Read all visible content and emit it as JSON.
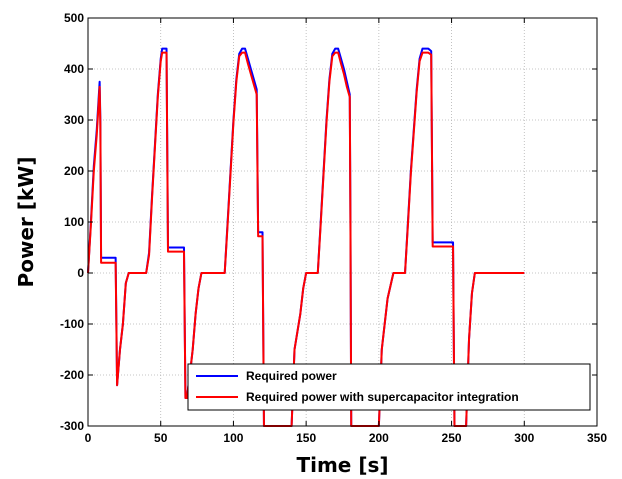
{
  "chart_data": {
    "type": "line",
    "title": "",
    "xlabel": "Time [s]",
    "ylabel": "Power [kW]",
    "xlim": [
      0,
      350
    ],
    "ylim": [
      -300,
      500
    ],
    "xticks": [
      0,
      50,
      100,
      150,
      200,
      250,
      300,
      350
    ],
    "yticks": [
      -300,
      -200,
      -100,
      0,
      100,
      200,
      300,
      400,
      500
    ],
    "grid": true,
    "legend_position": "bottom-right",
    "series": [
      {
        "name": "Required power",
        "color": "#0000ff",
        "x": [
          0,
          2,
          4,
          6,
          8,
          8.5,
          9,
          17,
          19,
          20,
          22,
          24,
          26,
          28,
          30,
          40,
          42,
          44,
          46,
          48,
          50,
          51,
          54,
          55,
          64,
          66,
          67,
          68,
          70,
          72,
          74,
          76,
          78,
          80,
          94,
          96,
          98,
          100,
          102,
          104,
          106,
          108,
          110,
          112,
          114,
          116,
          117,
          120,
          121,
          124,
          140,
          142,
          146,
          148,
          150,
          152,
          155,
          158,
          160,
          162,
          164,
          166,
          168,
          170,
          172,
          174,
          176,
          178,
          180,
          180.5,
          181,
          183,
          200,
          202,
          206,
          210,
          214,
          216,
          218,
          220,
          222,
          224,
          226,
          228,
          230,
          232,
          234,
          236,
          237,
          238,
          240,
          251,
          252,
          254,
          260,
          262,
          264,
          266,
          268,
          270,
          300
        ],
        "y": [
          0,
          100,
          210,
          280,
          375,
          300,
          30,
          30,
          30,
          -220,
          -150,
          -100,
          -20,
          0,
          0,
          0,
          40,
          150,
          250,
          350,
          420,
          440,
          440,
          50,
          50,
          50,
          -245,
          -245,
          -200,
          -150,
          -80,
          -30,
          0,
          0,
          0,
          100,
          200,
          300,
          380,
          430,
          440,
          440,
          420,
          400,
          380,
          360,
          80,
          80,
          -300,
          -300,
          -300,
          -150,
          -80,
          -30,
          0,
          0,
          0,
          0,
          100,
          200,
          300,
          380,
          430,
          440,
          440,
          420,
          400,
          375,
          350,
          80,
          -300,
          -300,
          -300,
          -150,
          -50,
          0,
          0,
          0,
          0,
          100,
          200,
          280,
          360,
          420,
          440,
          440,
          440,
          435,
          60,
          60,
          60,
          60,
          -300,
          -300,
          -300,
          -130,
          -40,
          0,
          0,
          0,
          0
        ]
      },
      {
        "name": "Required power with supercapacitor integration",
        "color": "#ff0000",
        "x": [
          0,
          2,
          4,
          6,
          8,
          8.5,
          9,
          17,
          19,
          20,
          22,
          24,
          26,
          28,
          30,
          40,
          42,
          44,
          46,
          48,
          50,
          51,
          54,
          55,
          64,
          66,
          67,
          68,
          70,
          72,
          74,
          76,
          78,
          80,
          94,
          96,
          98,
          100,
          102,
          104,
          106,
          108,
          110,
          112,
          114,
          116,
          117,
          120,
          121,
          124,
          140,
          142,
          146,
          148,
          150,
          152,
          155,
          158,
          160,
          162,
          164,
          166,
          168,
          170,
          172,
          174,
          176,
          178,
          180,
          180.5,
          181,
          183,
          200,
          202,
          206,
          210,
          214,
          216,
          218,
          220,
          222,
          224,
          226,
          228,
          230,
          232,
          234,
          236,
          237,
          238,
          240,
          251,
          252,
          254,
          260,
          262,
          264,
          266,
          268,
          270,
          300
        ],
        "y": [
          0,
          95,
          200,
          270,
          365,
          290,
          20,
          20,
          20,
          -220,
          -150,
          -100,
          -20,
          0,
          0,
          0,
          35,
          145,
          245,
          345,
          415,
          432,
          432,
          42,
          42,
          42,
          -245,
          -245,
          -200,
          -150,
          -80,
          -30,
          0,
          0,
          0,
          95,
          195,
          295,
          375,
          425,
          432,
          432,
          410,
          390,
          370,
          350,
          72,
          72,
          -300,
          -300,
          -300,
          -150,
          -80,
          -30,
          0,
          0,
          0,
          0,
          95,
          195,
          295,
          375,
          425,
          432,
          432,
          410,
          390,
          365,
          345,
          72,
          -300,
          -300,
          -300,
          -150,
          -50,
          0,
          0,
          0,
          0,
          95,
          195,
          275,
          355,
          415,
          432,
          432,
          432,
          428,
          52,
          52,
          52,
          52,
          -300,
          -300,
          -300,
          -130,
          -40,
          0,
          0,
          0,
          0
        ]
      }
    ]
  }
}
